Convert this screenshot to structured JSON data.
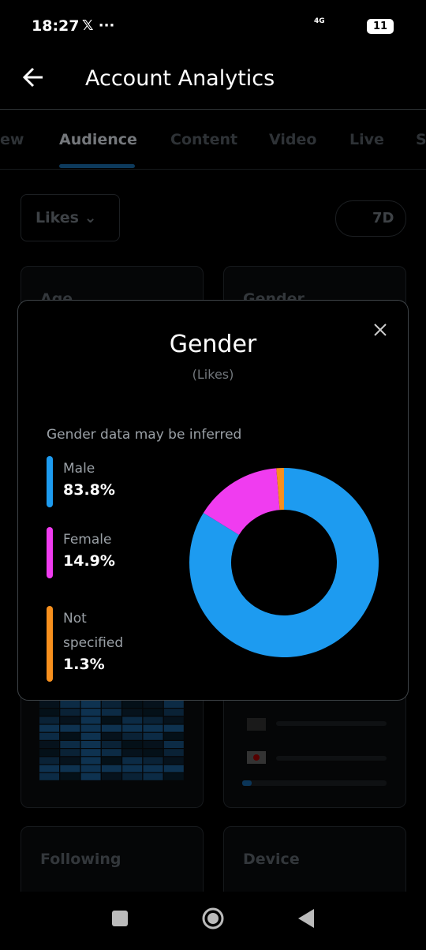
{
  "status_bar": {
    "time": "18:27",
    "network": "4G",
    "battery": "11"
  },
  "header": {
    "title": "Account Analytics"
  },
  "tabs": [
    "ew",
    "Audience",
    "Content",
    "Video",
    "Live",
    "S"
  ],
  "filter": {
    "metric": "Likes",
    "range": "7D"
  },
  "cards": [
    "Age",
    "Gender",
    "Following",
    "Device"
  ],
  "modal": {
    "title": "Gender",
    "subtitle": "(Likes)",
    "note": "Gender data may be inferred"
  },
  "chart_data": {
    "type": "pie",
    "donut": true,
    "categories": [
      "Male",
      "Female",
      "Not specified"
    ],
    "values": [
      83.8,
      14.9,
      1.3
    ],
    "value_labels": [
      "83.8%",
      "14.9%",
      "1.3%"
    ],
    "colors": [
      "#1d9bf0",
      "#f03cf0",
      "#f7901e"
    ]
  }
}
